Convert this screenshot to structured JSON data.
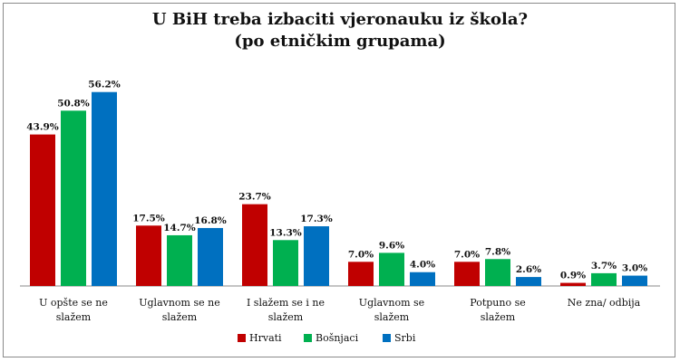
{
  "chart_data": {
    "type": "bar",
    "title": "U BiH treba izbaciti vjeronauku iz škola?",
    "subtitle": "(po etničkim grupama)",
    "categories": [
      [
        "U opšte se ne",
        "slažem"
      ],
      [
        "Uglavnom se ne",
        "slažem"
      ],
      [
        "I slažem se i ne",
        "slažem"
      ],
      [
        "Uglavnom se",
        "slažem"
      ],
      [
        "Potpuno se",
        "slažem"
      ],
      [
        "Ne zna/ odbija"
      ]
    ],
    "series": [
      {
        "name": "Hrvati",
        "color": "#c00000",
        "values": [
          43.9,
          17.5,
          23.7,
          7.0,
          7.0,
          0.9
        ],
        "labels": [
          "43.9%",
          "17.5%",
          "23.7%",
          "7.0%",
          "7.0%",
          "0.9%"
        ]
      },
      {
        "name": "Bošnjaci",
        "color": "#00b050",
        "values": [
          50.8,
          14.7,
          13.3,
          9.6,
          7.8,
          3.7
        ],
        "labels": [
          "50.8%",
          "14.7%",
          "13.3%",
          "9.6%",
          "7.8%",
          "3.7%"
        ]
      },
      {
        "name": "Srbi",
        "color": "#0070c0",
        "values": [
          56.2,
          16.8,
          17.3,
          4.0,
          2.6,
          3.0
        ],
        "labels": [
          "56.2%",
          "16.8%",
          "17.3%",
          "4.0%",
          "2.6%",
          "3.0%"
        ]
      }
    ],
    "ylim": [
      0,
      60
    ],
    "grid": false,
    "legend": "bottom"
  }
}
